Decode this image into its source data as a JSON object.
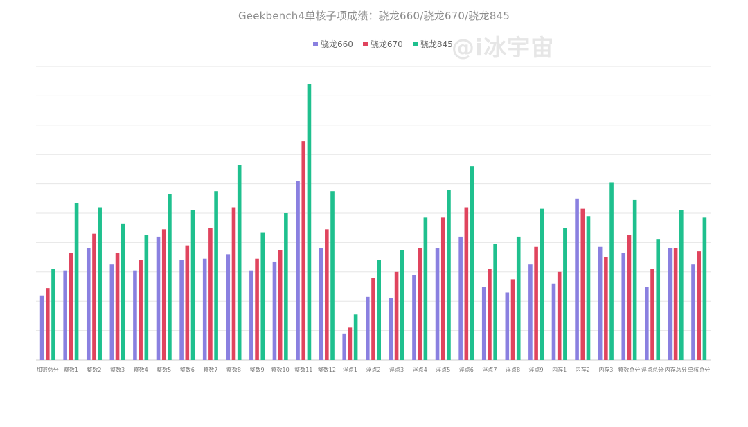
{
  "watermark": "@i冰宇宙",
  "chart_data": {
    "type": "bar",
    "title": "Geekbench4单核子项成绩：骁龙660/骁龙670/骁龙845",
    "xlabel": "",
    "ylabel": "",
    "ylim": [
      0,
      100
    ],
    "grid": true,
    "legend_position": "top",
    "categories": [
      "加密总分",
      "整数1",
      "整数2",
      "整数3",
      "整数4",
      "整数5",
      "整数6",
      "整数7",
      "整数8",
      "整数9",
      "整数10",
      "整数11",
      "整数12",
      "浮点1",
      "浮点2",
      "浮点3",
      "浮点4",
      "浮点5",
      "浮点6",
      "浮点7",
      "浮点8",
      "浮点9",
      "内存1",
      "内存2",
      "内存3",
      "整数总分",
      "浮点总分",
      "内存总分",
      "单核总分"
    ],
    "series": [
      {
        "name": "骁龙660",
        "color": "#8a80e0",
        "values": [
          22,
          30.5,
          38,
          32.5,
          30.5,
          42,
          34,
          34.5,
          36,
          30.5,
          33.5,
          61,
          38,
          9,
          21.5,
          21,
          29,
          38,
          42,
          25,
          23,
          32.5,
          26,
          55,
          38.5,
          36.5,
          25,
          38,
          32.5
        ]
      },
      {
        "name": "骁龙670",
        "color": "#e0445e",
        "values": [
          24.5,
          36.5,
          43,
          36.5,
          34,
          44.5,
          39,
          45,
          52,
          34.5,
          37.5,
          74.5,
          44.5,
          11,
          28,
          30,
          38,
          48.5,
          52,
          31,
          27.5,
          38.5,
          30,
          51.5,
          35,
          42.5,
          31,
          38,
          37
        ]
      },
      {
        "name": "骁龙845",
        "color": "#1fc08e",
        "values": [
          31,
          53.5,
          52,
          46.5,
          42.5,
          56.5,
          51,
          57.5,
          66.5,
          43.5,
          50,
          94,
          57.5,
          15.5,
          34,
          37.5,
          48.5,
          58,
          66,
          39.5,
          42,
          51.5,
          45,
          49,
          60.5,
          54.5,
          41,
          51,
          48.5
        ]
      }
    ]
  }
}
